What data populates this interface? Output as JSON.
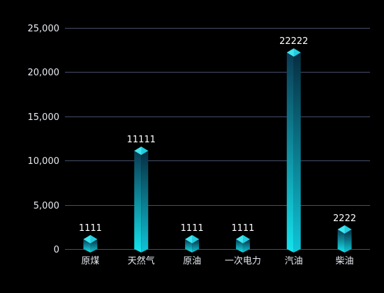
{
  "chart_data": {
    "type": "bar",
    "categories": [
      "原煤",
      "天然气",
      "原油",
      "一次电力",
      "汽油",
      "柴油"
    ],
    "values": [
      1111,
      11111,
      1111,
      1111,
      22222,
      2222
    ],
    "data_labels": [
      "1111",
      "11111",
      "1111",
      "1111",
      "22222",
      "2222"
    ],
    "y_ticks": [
      0,
      5000,
      10000,
      15000,
      20000,
      25000
    ],
    "y_tick_labels": [
      "0",
      "5,000",
      "10,000",
      "15,000",
      "20,000",
      "25,000"
    ],
    "ylim": [
      0,
      25000
    ],
    "grid": true,
    "legend": "none",
    "title": "",
    "xlabel": "",
    "ylabel": ""
  },
  "colors": {
    "background": "#000000",
    "bar_top": "#0a3a52",
    "bar_bottom": "#14e4ee",
    "cap_light": "#3ee6f0",
    "cap_dark": "#0fb7cf",
    "grid": "#46506a",
    "text": "#e8ecf2"
  }
}
